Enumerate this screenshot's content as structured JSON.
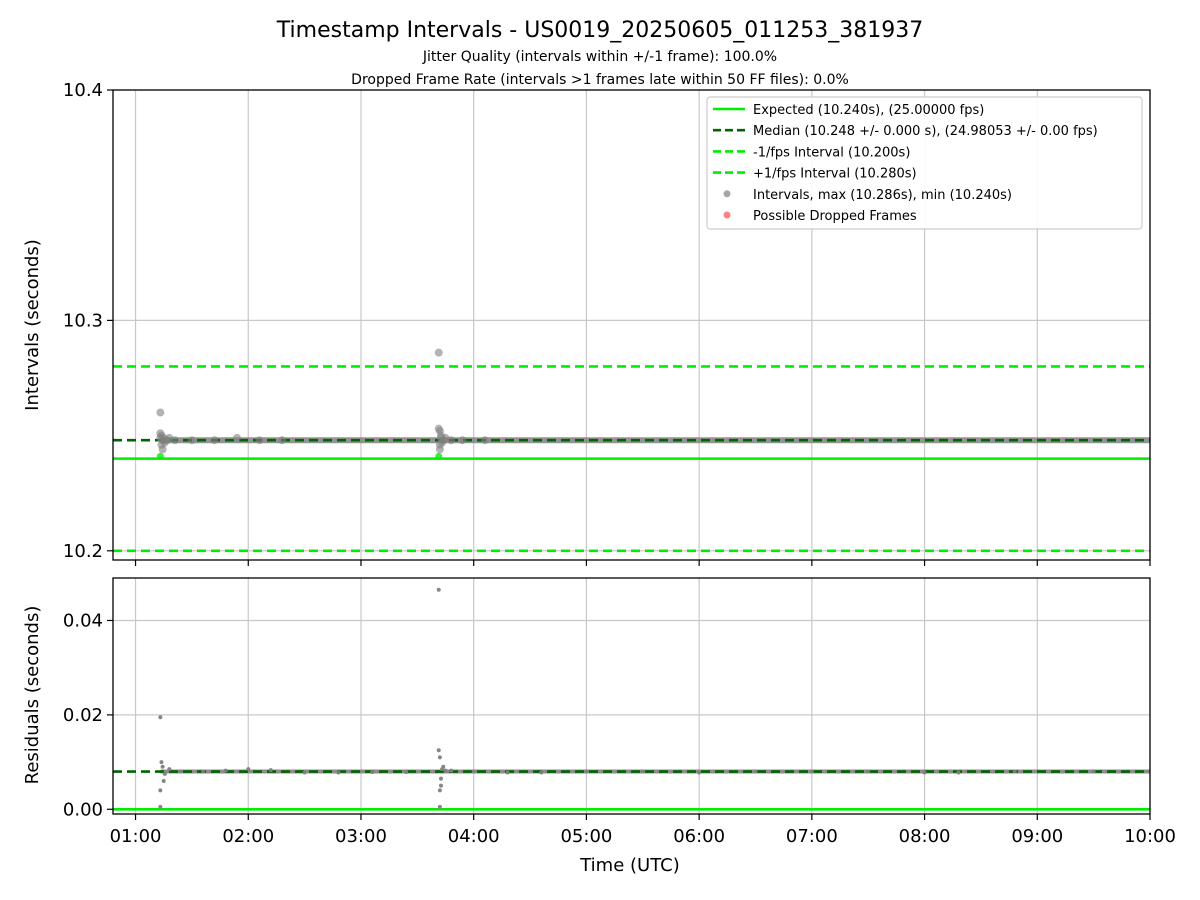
{
  "titles": {
    "main": "Timestamp Intervals - US0019_20250605_011253_381937",
    "sub1": "Jitter Quality (intervals within +/-1 frame): 100.0%",
    "sub2": "Dropped Frame Rate (intervals >1 frames late within 50 FF files): 0.0%"
  },
  "colors": {
    "expected": "#00ee00",
    "median": "#006400",
    "fps_band": "#00ee00",
    "points": "#808080",
    "dropped": "#ff4d4d",
    "grid": "#c8c8c8",
    "axis": "#000000"
  },
  "chart_data": [
    {
      "type": "scatter",
      "panel": "top",
      "ylabel": "Intervals (seconds)",
      "xlabel": "",
      "xlim": [
        0.8,
        10.0
      ],
      "ylim": [
        10.196,
        10.4
      ],
      "yticks": [
        10.2,
        10.3,
        10.4
      ],
      "ytick_labels": [
        "10.2",
        "10.3",
        "10.4"
      ],
      "grid": true,
      "legend_position": "top-right",
      "hlines": [
        {
          "name": "Expected (10.240s), (25.00000 fps)",
          "y": 10.24,
          "style": "solid",
          "color_key": "expected"
        },
        {
          "name": "Median (10.248 +/- 0.000 s), (24.98053 +/- 0.00 fps)",
          "y": 10.248,
          "style": "dashed",
          "color_key": "median"
        },
        {
          "name": "-1/fps Interval (10.200s)",
          "y": 10.2,
          "style": "dashed",
          "color_key": "fps_band"
        },
        {
          "name": "+1/fps Interval (10.280s)",
          "y": 10.28,
          "style": "dashed",
          "color_key": "fps_band"
        }
      ],
      "series": [
        {
          "name": "Intervals, max (10.286s), min (10.240s)",
          "marker": "circle",
          "color_key": "points"
        },
        {
          "name": "Possible Dropped Frames",
          "marker": "circle",
          "color_key": "dropped"
        }
      ],
      "points_x": [
        1.22,
        1.22,
        1.22,
        1.23,
        1.23,
        1.24,
        1.24,
        1.25,
        1.26,
        1.28,
        1.3,
        1.35,
        1.5,
        1.7,
        1.9,
        2.1,
        2.3,
        3.69,
        3.69,
        3.7,
        3.7,
        3.7,
        3.71,
        3.71,
        3.72,
        3.73,
        3.75,
        3.8,
        3.9,
        4.1
      ],
      "points_y": [
        10.26,
        10.251,
        10.249,
        10.25,
        10.246,
        10.244,
        10.248,
        10.249,
        10.247,
        10.248,
        10.249,
        10.248,
        10.248,
        10.248,
        10.249,
        10.248,
        10.248,
        10.286,
        10.253,
        10.252,
        10.246,
        10.244,
        10.249,
        10.25,
        10.247,
        10.248,
        10.249,
        10.248,
        10.248,
        10.248
      ],
      "green_points": [
        {
          "x": 1.22,
          "y": 10.241
        },
        {
          "x": 3.69,
          "y": 10.241
        }
      ]
    },
    {
      "type": "scatter",
      "panel": "bottom",
      "ylabel": "Residuals (seconds)",
      "xlabel": "Time (UTC)",
      "xlim": [
        0.8,
        10.0
      ],
      "ylim": [
        -0.001,
        0.049
      ],
      "yticks": [
        0.0,
        0.02,
        0.04
      ],
      "ytick_labels": [
        "0.00",
        "0.02",
        "0.04"
      ],
      "xticks": [
        1,
        2,
        3,
        4,
        5,
        6,
        7,
        8,
        9,
        10
      ],
      "xtick_labels": [
        "01:00",
        "02:00",
        "03:00",
        "04:00",
        "05:00",
        "06:00",
        "07:00",
        "08:00",
        "09:00",
        "10:00"
      ],
      "grid": true,
      "hlines": [
        {
          "y": 0.0,
          "style": "solid",
          "color_key": "expected"
        },
        {
          "y": 0.008,
          "style": "dashed",
          "color_key": "median"
        }
      ],
      "points_x": [
        1.22,
        1.22,
        1.22,
        1.23,
        1.24,
        1.25,
        1.26,
        1.3,
        1.4,
        1.6,
        1.8,
        2.0,
        2.2,
        2.5,
        2.8,
        3.1,
        3.4,
        3.69,
        3.69,
        3.7,
        3.7,
        3.7,
        3.71,
        3.71,
        3.72,
        3.73,
        3.75,
        3.8,
        4.0,
        4.3,
        4.6,
        5.0,
        5.5,
        6.0,
        6.5,
        7.0,
        7.5,
        8.0,
        8.3,
        8.8,
        9.5,
        10.0
      ],
      "points_y": [
        0.0195,
        0.0005,
        0.004,
        0.01,
        0.009,
        0.006,
        0.0075,
        0.0085,
        0.008,
        0.008,
        0.0082,
        0.0085,
        0.0083,
        0.0078,
        0.0078,
        0.0079,
        0.0079,
        0.0465,
        0.0125,
        0.0005,
        0.004,
        0.011,
        0.005,
        0.0065,
        0.0085,
        0.009,
        0.0082,
        0.0082,
        0.008,
        0.0078,
        0.0078,
        0.008,
        0.008,
        0.0078,
        0.008,
        0.008,
        0.008,
        0.0078,
        0.0078,
        0.008,
        0.008,
        0.008
      ],
      "band_x_start": 1.22,
      "band_x_end": 10.0,
      "band_y": 0.008
    }
  ]
}
